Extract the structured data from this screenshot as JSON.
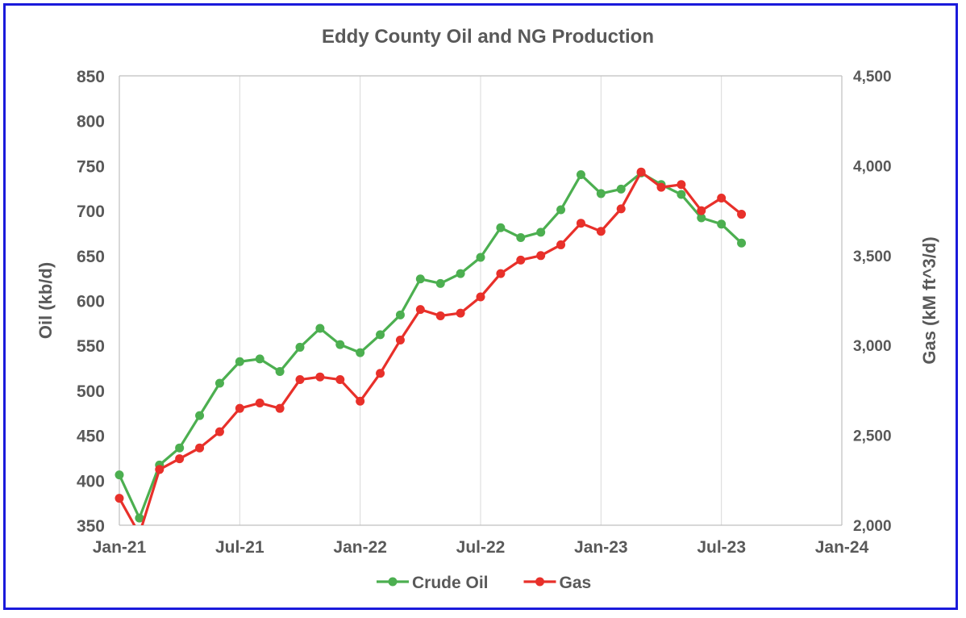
{
  "chart_data": {
    "type": "line",
    "title": "Eddy County Oil and NG Production",
    "xlabel": "",
    "x_ticks": [
      "Jan-21",
      "Jul-21",
      "Jan-22",
      "Jul-22",
      "Jan-23",
      "Jul-23",
      "Jan-24"
    ],
    "x_range": [
      "2021-01",
      "2024-01"
    ],
    "ylabel_left": "Oil (kb/d)",
    "ylim_left": [
      350,
      850
    ],
    "y_ticks_left": [
      "350",
      "400",
      "450",
      "500",
      "550",
      "600",
      "650",
      "700",
      "750",
      "800",
      "850"
    ],
    "ylabel_right": "Gas (kM ft^3/d)",
    "ylim_right": [
      2000,
      4500
    ],
    "y_ticks_right": [
      "2,000",
      "2,500",
      "3,000",
      "3,500",
      "4,000",
      "4,500"
    ],
    "grid": "vertical",
    "legend_position": "bottom",
    "x": [
      "2021-01",
      "2021-02",
      "2021-03",
      "2021-04",
      "2021-05",
      "2021-06",
      "2021-07",
      "2021-08",
      "2021-09",
      "2021-10",
      "2021-11",
      "2021-12",
      "2022-01",
      "2022-02",
      "2022-03",
      "2022-04",
      "2022-05",
      "2022-06",
      "2022-07",
      "2022-08",
      "2022-09",
      "2022-10",
      "2022-11",
      "2022-12",
      "2023-01",
      "2023-02",
      "2023-03",
      "2023-04",
      "2023-05",
      "2023-06",
      "2023-07",
      "2023-08"
    ],
    "series": [
      {
        "name": "Crude Oil",
        "axis": "left",
        "color": "#4caf50",
        "values": [
          406,
          358,
          417,
          436,
          472,
          508,
          532,
          535,
          521,
          548,
          569,
          551,
          542,
          562,
          584,
          624,
          619,
          630,
          648,
          681,
          670,
          676,
          701,
          740,
          719,
          724,
          742,
          729,
          718,
          692,
          685,
          664
        ]
      },
      {
        "name": "Gas",
        "axis": "left_scaled_right",
        "color": "#e8302a",
        "values": [
          2150,
          1950,
          2310,
          2370,
          2430,
          2520,
          2650,
          2680,
          2650,
          2810,
          2825,
          2810,
          2690,
          2845,
          3030,
          3200,
          3165,
          3180,
          3270,
          3400,
          3475,
          3500,
          3560,
          3680,
          3635,
          3760,
          3965,
          3880,
          3895,
          3750,
          3820,
          3730
        ]
      }
    ]
  }
}
